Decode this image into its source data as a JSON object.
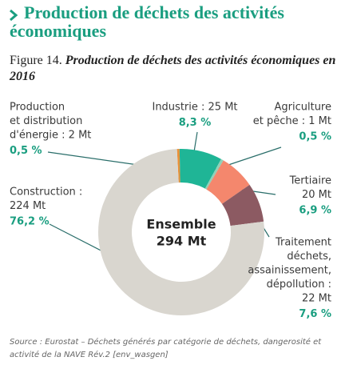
{
  "header": {
    "title": "Production de déchets des activités économiques"
  },
  "chart_data": {
    "type": "donut",
    "figure_label": "Figure 14.",
    "title": "Production de déchets des activités économiques en 2016",
    "center_label": [
      "Ensemble",
      "294 Mt"
    ],
    "categories": [
      [
        "Production",
        "et distribution",
        "d'énergie : 2 Mt"
      ],
      [
        "Industrie : 25 Mt"
      ],
      [
        "Agriculture",
        "et pêche : 1 Mt"
      ],
      [
        "Tertiaire",
        "20 Mt"
      ],
      [
        "Traitement",
        "déchets,",
        "assainissement,",
        "dépollution :",
        "22 Mt"
      ],
      [
        "Construction :",
        "224 Mt"
      ]
    ],
    "values": [
      0.5,
      8.3,
      0.5,
      6.9,
      7.6,
      76.2
    ],
    "value_labels": [
      "0,5 %",
      "8,3 %",
      "0,5 %",
      "6,9 %",
      "7,6 %",
      "76,2 %"
    ],
    "colors": [
      "#e8913a",
      "#1fb596",
      "#8fd1b8",
      "#f4876d",
      "#8c5a62",
      "#d9d6cf"
    ]
  },
  "footer": {
    "source": "Source : Eurostat – Déchets générés par catégorie de déchets, dangerosité et activité de la NAVE Rév.2 [env_wasgen]"
  }
}
